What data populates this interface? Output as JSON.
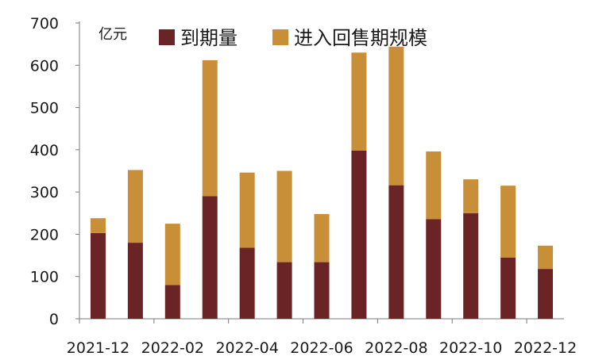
{
  "chart_data": {
    "type": "bar",
    "stacked": true,
    "unit": "亿元",
    "categories": [
      "2021-12",
      "2022-01",
      "2022-02",
      "2022-03",
      "2022-04",
      "2022-05",
      "2022-06",
      "2022-07",
      "2022-08",
      "2022-09",
      "2022-10",
      "2022-11",
      "2022-12"
    ],
    "x_tick_labels": [
      "2021-12",
      "2022-02",
      "2022-04",
      "2022-06",
      "2022-08",
      "2022-10",
      "2022-12"
    ],
    "series": [
      {
        "name": "到期量",
        "color": "#6b2425",
        "values": [
          203,
          180,
          80,
          290,
          168,
          134,
          134,
          398,
          316,
          236,
          250,
          145,
          118
        ]
      },
      {
        "name": "进入回售期规模",
        "color": "#c98e38",
        "values": [
          35,
          172,
          145,
          322,
          178,
          216,
          114,
          232,
          328,
          160,
          80,
          170,
          55
        ]
      }
    ],
    "ylim": [
      0,
      700
    ],
    "yticks": [
      0,
      100,
      200,
      300,
      400,
      500,
      600,
      700
    ],
    "grid": false,
    "legend_position": "top"
  }
}
